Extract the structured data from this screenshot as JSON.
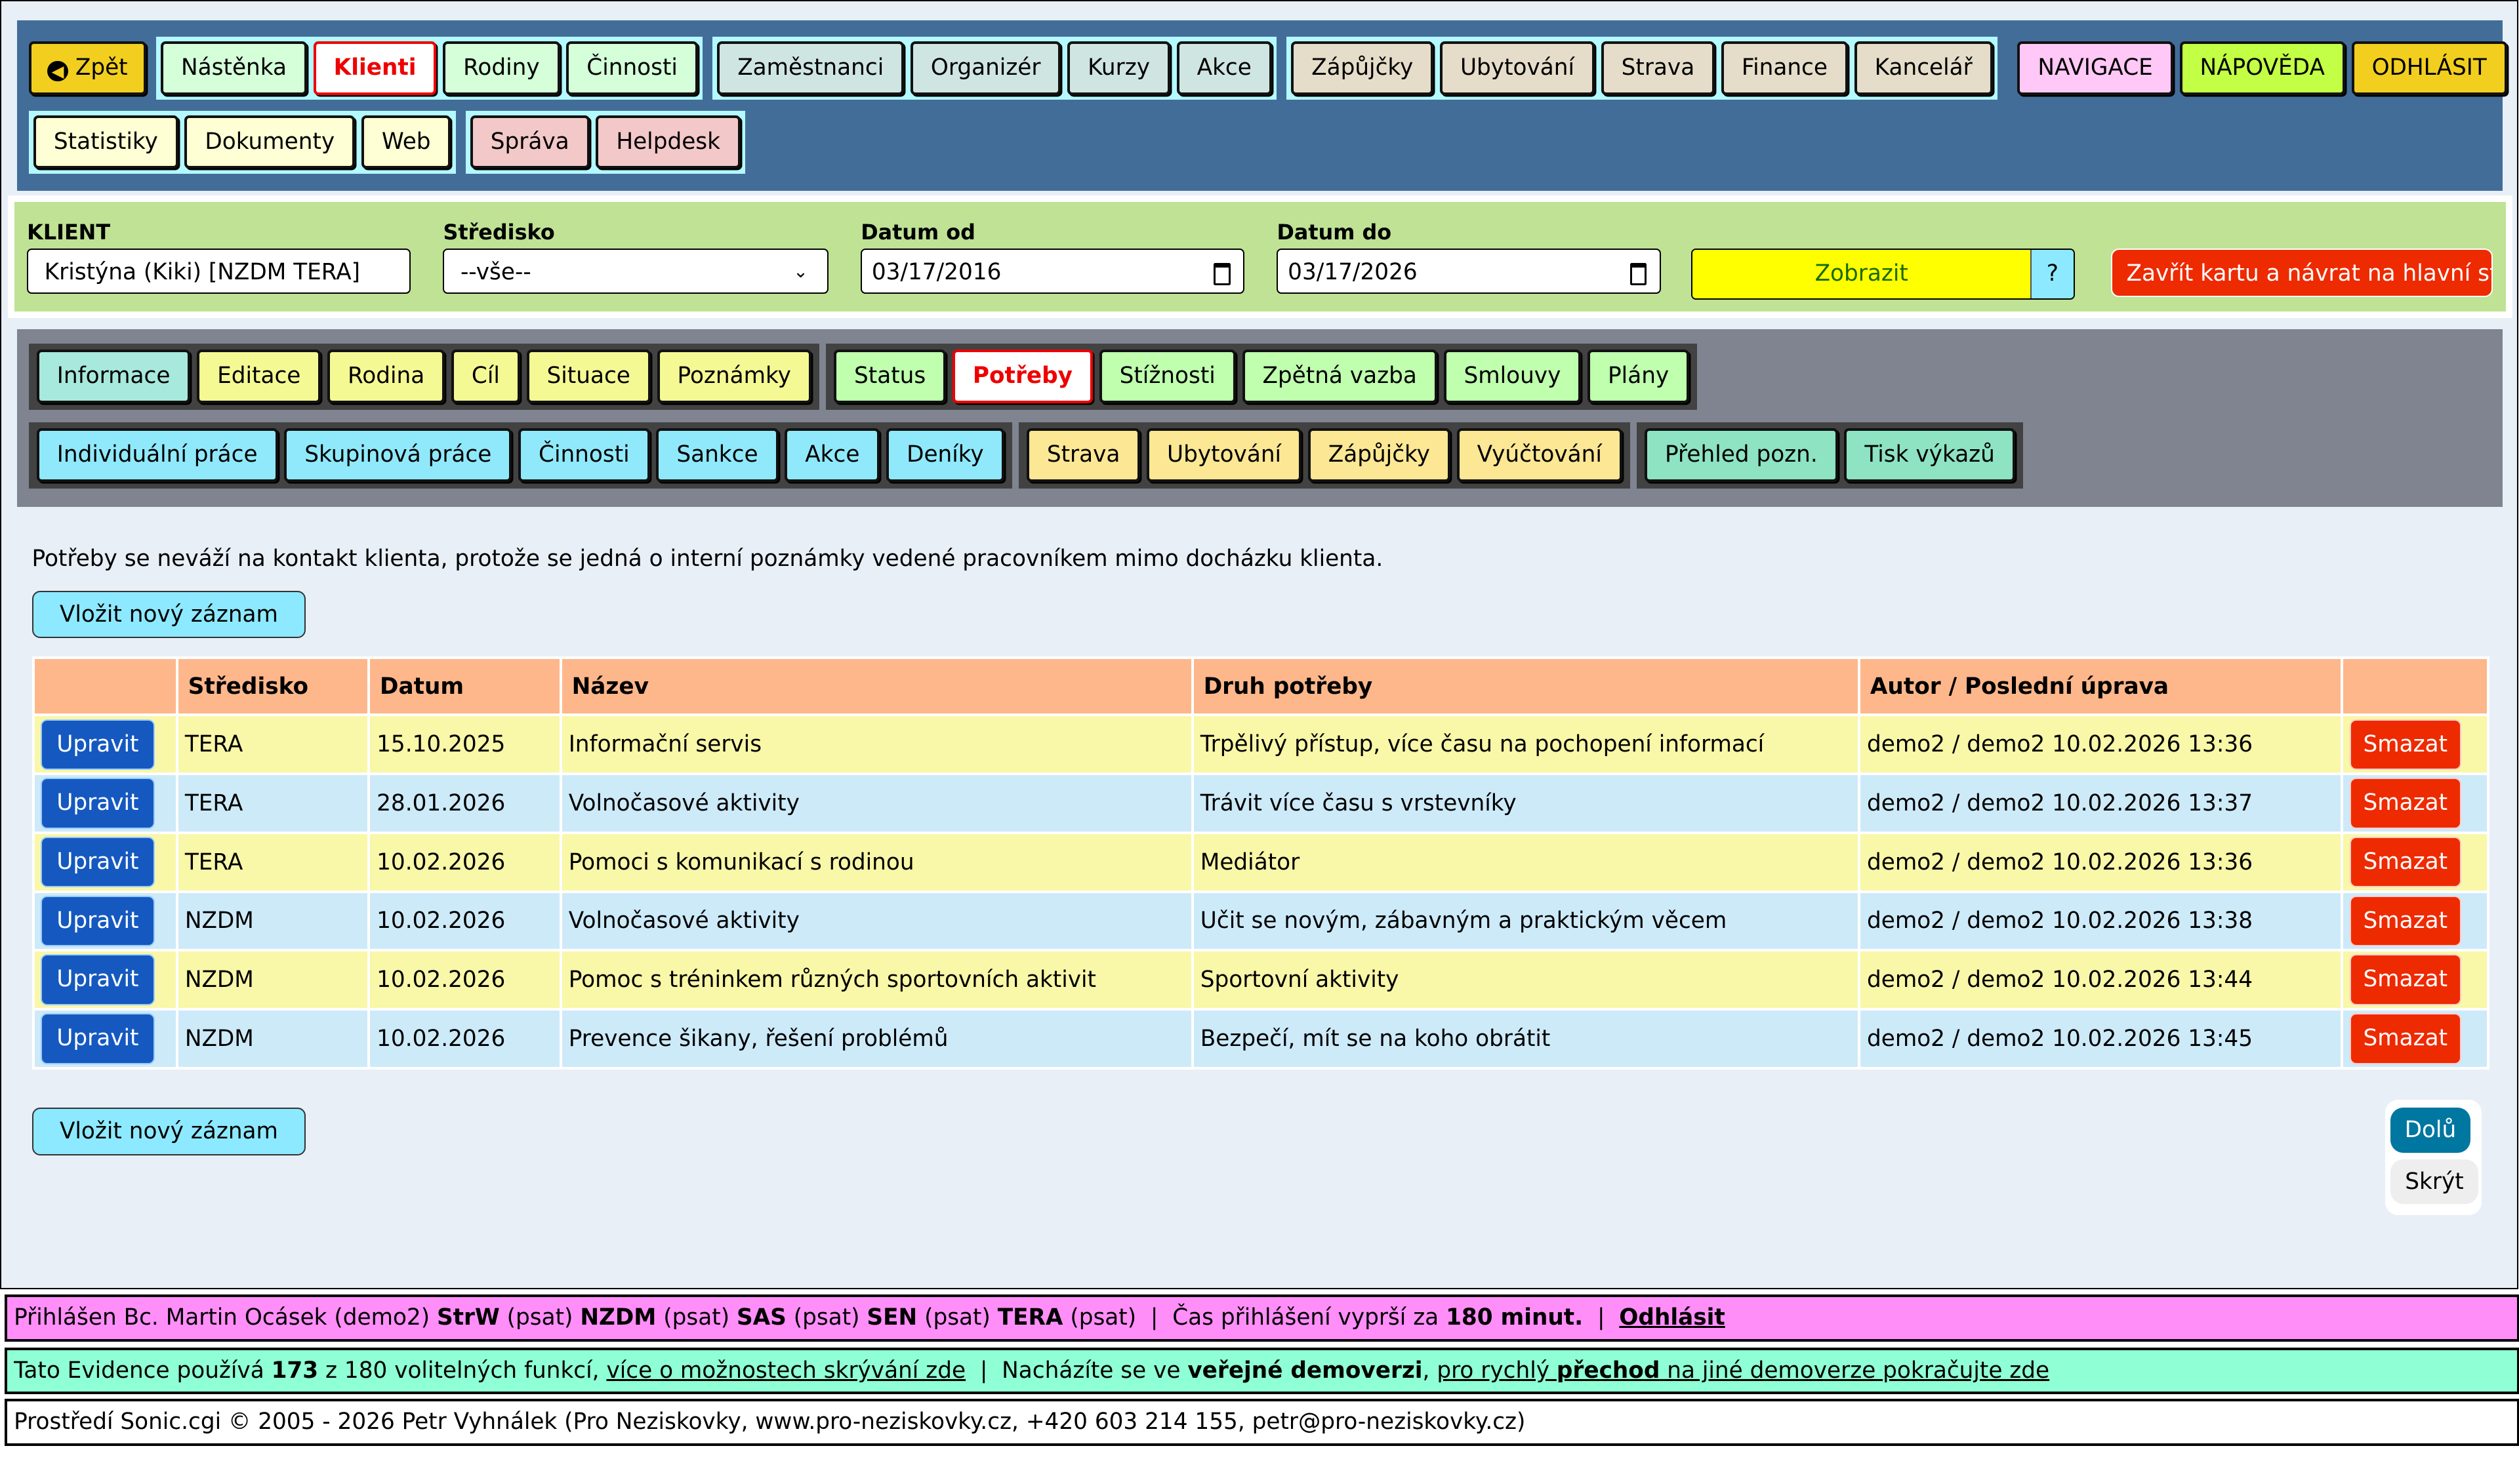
{
  "nav": {
    "back": "Zpět",
    "group1": [
      "Nástěnka",
      "Klienti",
      "Rodiny",
      "Činnosti"
    ],
    "group2": [
      "Zaměstnanci",
      "Organizér",
      "Kurzy",
      "Akce"
    ],
    "group3": [
      "Zápůjčky",
      "Ubytování",
      "Strava",
      "Finance",
      "Kancelář"
    ],
    "group4": [
      "Statistiky",
      "Dokumenty",
      "Web"
    ],
    "group5": [
      "Správa",
      "Helpdesk"
    ],
    "right": [
      "NAVIGACE",
      "NÁPOVĚDA",
      "ODHLÁSIT"
    ],
    "active": "Klienti"
  },
  "filter": {
    "client_label": "KLIENT",
    "client_value": "Kristýna (Kiki) [NZDM TERA]",
    "center_label": "Středisko",
    "center_value": "--vše--",
    "from_label": "Datum od",
    "from_value": "03/17/2016",
    "to_label": "Datum do",
    "to_value": "03/17/2026",
    "show": "Zobrazit",
    "help": "?",
    "close": "Zavřít kartu a návrat na hlavní stra"
  },
  "tabs": {
    "g1": [
      "Informace",
      "Editace",
      "Rodina",
      "Cíl",
      "Situace",
      "Poznámky"
    ],
    "g2": [
      "Status",
      "Potřeby",
      "Stížnosti",
      "Zpětná vazba",
      "Smlouvy",
      "Plány"
    ],
    "g3": [
      "Individuální práce",
      "Skupinová práce",
      "Činnosti",
      "Sankce",
      "Akce",
      "Deníky"
    ],
    "g4": [
      "Strava",
      "Ubytování",
      "Zápůjčky",
      "Vyúčtování"
    ],
    "g5": [
      "Přehled pozn.",
      "Tisk výkazů"
    ],
    "active": "Potřeby"
  },
  "message": "Potřeby se neváží na kontakt klienta, protože se jedná o interní poznámky vedené pracovníkem mimo docházku klienta.",
  "add_label": "Vložit nový záznam",
  "table": {
    "headers": [
      "",
      "Středisko",
      "Datum",
      "Název",
      "Druh potřeby",
      "Autor / Poslední úprava",
      ""
    ],
    "edit_label": "Upravit",
    "delete_label": "Smazat",
    "rows": [
      [
        "TERA",
        "15.10.2025",
        "Informační servis",
        "Trpělivý přístup, více času na pochopení informací",
        "demo2 / demo2 10.02.2026 13:36"
      ],
      [
        "TERA",
        "28.01.2026",
        "Volnočasové aktivity",
        "Trávit více času s vrstevníky",
        "demo2 / demo2 10.02.2026 13:37"
      ],
      [
        "TERA",
        "10.02.2026",
        "Pomoci s komunikací s rodinou",
        "Mediátor",
        "demo2 / demo2 10.02.2026 13:36"
      ],
      [
        "NZDM",
        "10.02.2026",
        "Volnočasové aktivity",
        "Učit se novým, zábavným a praktickým věcem",
        "demo2 / demo2 10.02.2026 13:38"
      ],
      [
        "NZDM",
        "10.02.2026",
        "Pomoc s tréninkem různých sportovních aktivit",
        "Sportovní aktivity",
        "demo2 / demo2 10.02.2026 13:44"
      ],
      [
        "NZDM",
        "10.02.2026",
        "Prevence šikany, řešení problémů",
        "Bezpečí, mít se na koho obrátit",
        "demo2 / demo2 10.02.2026 13:45"
      ]
    ]
  },
  "popup": {
    "down": "Dolů",
    "hide": "Skrýt"
  },
  "footer": {
    "login": {
      "t1": "Přihlášen Bc. Martin Ocásek (demo2) ",
      "b1": "StrW",
      "t2": " (psat) ",
      "b2": "NZDM",
      "t3": " (psat) ",
      "b3": "SAS",
      "t4": " (psat) ",
      "b4": "SEN",
      "t5": " (psat) ",
      "b5": "TERA",
      "t6": " (psat)  |  Čas přihlášení vyprší za ",
      "b6": "180 minut.",
      "t7": "  |  ",
      "logout": "Odhlásit"
    },
    "features": {
      "t1": "Tato Evidence používá ",
      "b1": "173",
      "t2": " z 180 volitelných funkcí, ",
      "l1": "více o možnostech skrývání zde",
      "t3": "  |  Nacházíte se ve ",
      "b2": "veřejné demoverzi",
      "t4": ", ",
      "l2a": "pro rychlý ",
      "l2b": "přechod",
      "l2c": " na jiné demoverze pokračujte zde"
    },
    "credits": {
      "t1": "Prostředí ",
      "l1": "Sonic.cgi",
      "t2": " © 2005 - 2026 Petr Vyhnálek (Pro Neziskovky, ",
      "l2": "www.pro-neziskovky.cz",
      "t3": ", +420 603 214 155, ",
      "l3": "petr@pro-neziskovky.cz",
      "t4": ")"
    }
  },
  "colors": {
    "nav_bg": "#436d99",
    "filter_bg": "#bfe295",
    "tabs_bg": "#7f8490",
    "header_bg": "#fdb78b",
    "row_yellow": "#f9f7a8",
    "row_blue": "#cdeaf9",
    "active_text": "#ee0000",
    "delete": "#ee2a00",
    "edit": "#1559c0"
  }
}
